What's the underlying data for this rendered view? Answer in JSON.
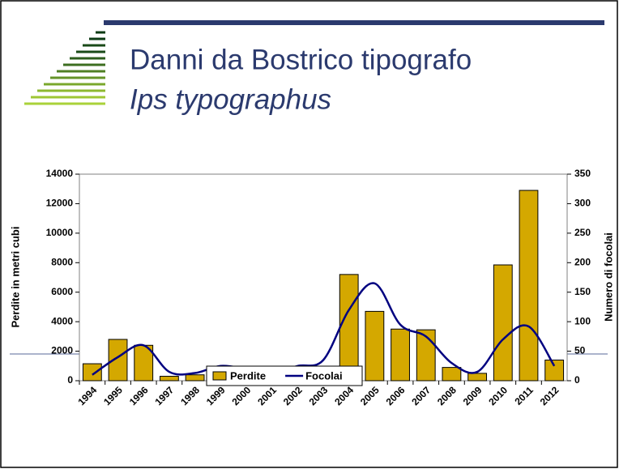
{
  "chart_data": {
    "type": "bar",
    "title": "Danni da Bostrico tipografo",
    "subtitle": "Ips typographus",
    "y_label": "Perdite in metri cubi",
    "y2_label": "Numero di focolai",
    "categories": [
      "1994",
      "1995",
      "1996",
      "1997",
      "1998",
      "1999",
      "2000",
      "2001",
      "2002",
      "2003",
      "2004",
      "2005",
      "2006",
      "2007",
      "2008",
      "2009",
      "2010",
      "2011",
      "2012"
    ],
    "series": [
      {
        "name": "Perdite",
        "type": "bar",
        "color": "#d4a800",
        "values": [
          1150,
          2800,
          2400,
          300,
          400,
          550,
          300,
          300,
          750,
          650,
          7200,
          4700,
          3500,
          3450,
          900,
          500,
          7850,
          12900,
          1400
        ]
      },
      {
        "name": "Focolai",
        "type": "line",
        "axis": "y2",
        "color": "#000080",
        "values": [
          10,
          40,
          60,
          15,
          13,
          25,
          20,
          12,
          25,
          35,
          120,
          165,
          95,
          75,
          30,
          15,
          70,
          92,
          25
        ]
      }
    ],
    "ylim": [
      0,
      14000
    ],
    "yticks": [
      0,
      2000,
      4000,
      6000,
      8000,
      10000,
      12000,
      14000
    ],
    "y2lim": [
      0,
      350
    ],
    "y2ticks": [
      0,
      50,
      100,
      150,
      200,
      250,
      300,
      350
    ],
    "legend": "bottom"
  }
}
